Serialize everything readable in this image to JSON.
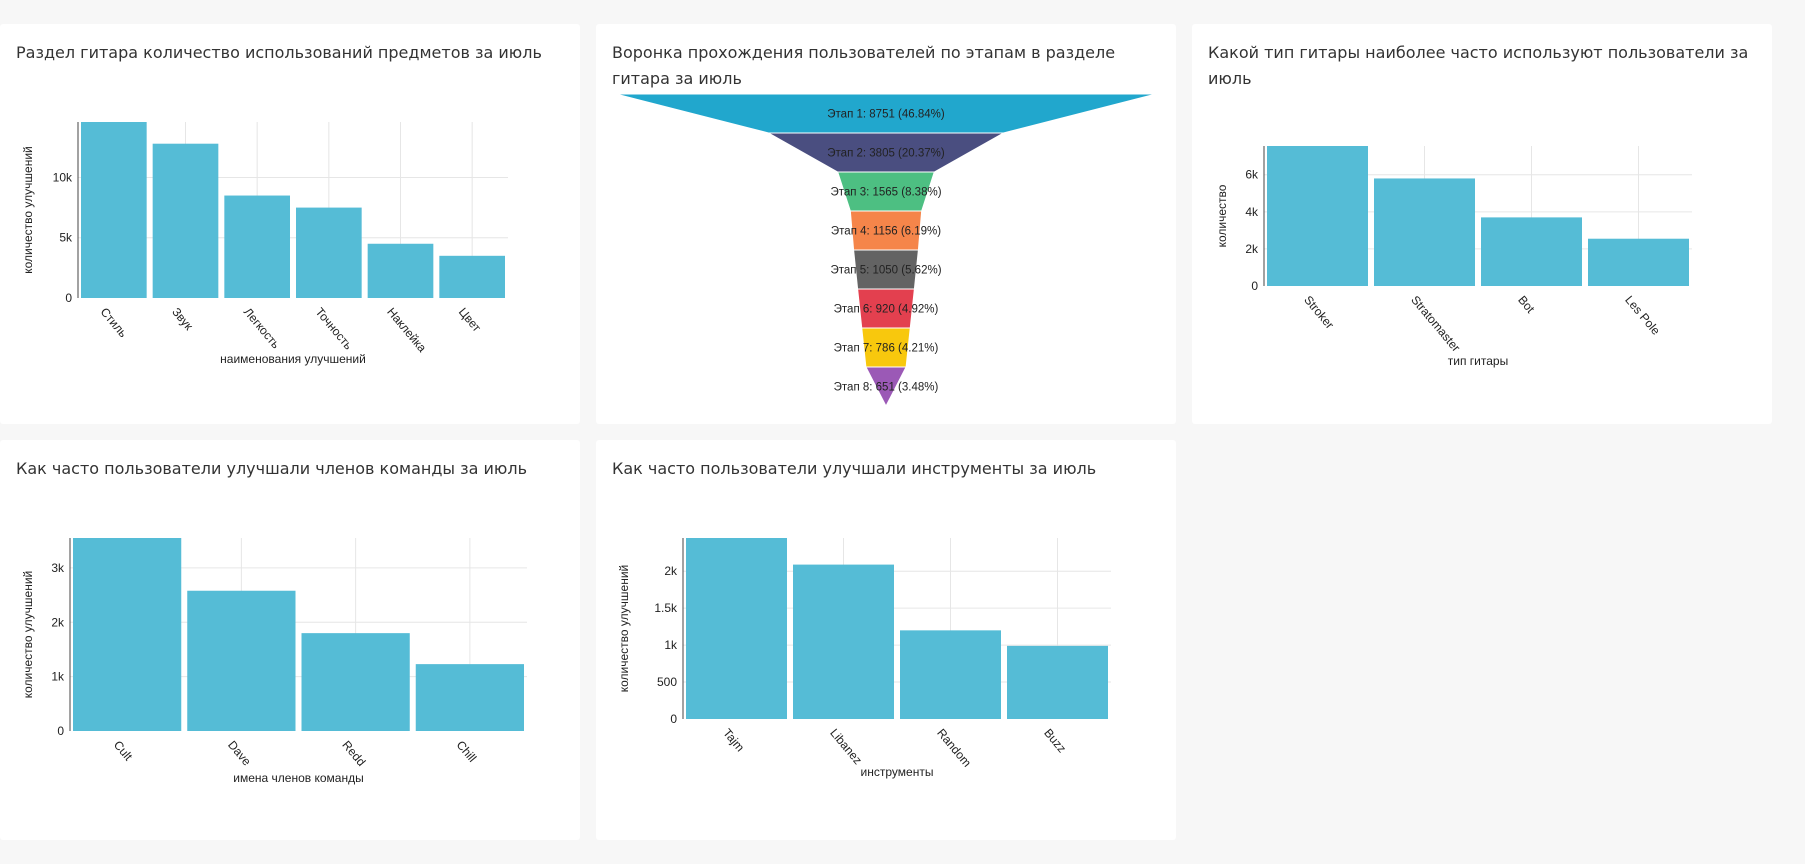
{
  "colors": {
    "bar": "#55bcd6",
    "grid": "#e6e6e6",
    "axis": "#444444",
    "funnel": [
      "#21a7cd",
      "#4a4e80",
      "#4dbf82",
      "#f5854a",
      "#636363",
      "#e3404f",
      "#f8c80d",
      "#9b59b6"
    ]
  },
  "titles": {
    "chart1": "Раздел гитара количество использований предметов за июль",
    "chart2": "Воронка прохождения пользователей по этапам в разделе гитара за июль",
    "chart3": "Какой тип гитары наиболее часто используют пользователи за июль",
    "chart4": "Как часто пользователи улучшали членов команды за июль",
    "chart5": "Как часто пользователи улучшали инструменты за июль"
  },
  "chart_data": [
    {
      "id": "chart1",
      "type": "bar",
      "title": "Раздел гитара количество использований предметов за июль",
      "categories": [
        "Стиль",
        "Звук",
        "Легкость",
        "Точность",
        "Наклейка",
        "Цвет"
      ],
      "values": [
        14600,
        12800,
        8500,
        7500,
        4500,
        3500
      ],
      "xlabel": "наименования улучшений",
      "ylabel": "количество улучшений",
      "ylim": [
        0,
        14600
      ],
      "yticks": [
        0,
        5000,
        10000
      ],
      "ytick_labels": [
        "0",
        "5k",
        "10k"
      ],
      "grid": true
    },
    {
      "id": "chart2",
      "type": "funnel",
      "title": "Воронка прохождения пользователей по этапам в разделе гитара за июль",
      "stages": [
        "Этап 1",
        "Этап 2",
        "Этап 3",
        "Этап 4",
        "Этап 5",
        "Этап 6",
        "Этап 7",
        "Этап 8"
      ],
      "values": [
        8751,
        3805,
        1565,
        1156,
        1050,
        920,
        786,
        651
      ],
      "labels": [
        "Этап 1: 8751 (46.84%)",
        "Этап 2: 3805 (20.37%)",
        "Этап 3: 1565 (8.38%)",
        "Этап 4: 1156 (6.19%)",
        "Этап 5: 1050 (5.62%)",
        "Этап 6: 920 (4.92%)",
        "Этап 7: 786 (4.21%)",
        "Этап 8: 651 (3.48%)"
      ]
    },
    {
      "id": "chart3",
      "type": "bar",
      "title": "Какой тип гитары наиболее часто используют пользователи за июль",
      "categories": [
        "Stroker",
        "Stratomaster",
        "Bot",
        "Les Pole"
      ],
      "values": [
        7550,
        5800,
        3700,
        2550
      ],
      "xlabel": "тип гитары",
      "ylabel": "количество",
      "ylim": [
        0,
        7550
      ],
      "yticks": [
        0,
        2000,
        4000,
        6000
      ],
      "ytick_labels": [
        "0",
        "2k",
        "4k",
        "6k"
      ],
      "grid": true
    },
    {
      "id": "chart4",
      "type": "bar",
      "title": "Как часто пользователи улучшали членов команды за июль",
      "categories": [
        "Cult",
        "Dave",
        "Redd",
        "Chill"
      ],
      "values": [
        3550,
        2580,
        1800,
        1230
      ],
      "xlabel": "имена членов команды",
      "ylabel": "количество улучшений",
      "ylim": [
        0,
        3550
      ],
      "yticks": [
        0,
        1000,
        2000,
        3000
      ],
      "ytick_labels": [
        "0",
        "1k",
        "2k",
        "3k"
      ],
      "grid": true
    },
    {
      "id": "chart5",
      "type": "bar",
      "title": "Как часто пользователи улучшали инструменты за июль",
      "categories": [
        "Tajm",
        "Libanez",
        "Random",
        "Buzz"
      ],
      "values": [
        2450,
        2090,
        1200,
        990
      ],
      "xlabel": "инструменты",
      "ylabel": "количество улучшений",
      "ylim": [
        0,
        2450
      ],
      "yticks": [
        0,
        500,
        1000,
        1500,
        2000
      ],
      "ytick_labels": [
        "0",
        "500",
        "1k",
        "1.5k",
        "2k"
      ],
      "grid": true
    }
  ]
}
